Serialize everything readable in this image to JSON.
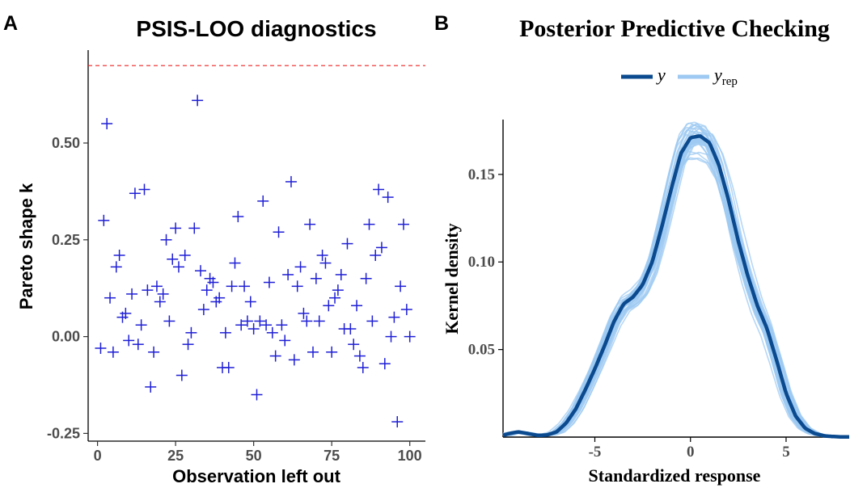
{
  "panels": {
    "A": {
      "letter": "A"
    },
    "B": {
      "letter": "B"
    }
  },
  "chart_data": [
    {
      "type": "scatter",
      "title": "PSIS-LOO diagnostics",
      "xlabel": "Observation left out",
      "ylabel": "Pareto shape k",
      "xlim": [
        -3,
        105
      ],
      "ylim": [
        -0.27,
        0.74
      ],
      "xticks": [
        0,
        25,
        50,
        75,
        100
      ],
      "xtick_labels": [
        "0",
        "25",
        "50",
        "75",
        "100"
      ],
      "yticks": [
        -0.25,
        0,
        0.25,
        0.5
      ],
      "ytick_labels": [
        "-0.25",
        "0.00",
        "0.25",
        "0.50"
      ],
      "threshold": 0.7,
      "threshold_color": "#ee2222",
      "marker": "plus",
      "marker_color": "#1f1fd6",
      "grid": false,
      "x": [
        1,
        2,
        3,
        4,
        5,
        6,
        7,
        8,
        9,
        10,
        11,
        12,
        13,
        14,
        15,
        16,
        17,
        18,
        19,
        20,
        21,
        22,
        23,
        24,
        25,
        26,
        27,
        28,
        29,
        30,
        31,
        32,
        33,
        34,
        35,
        36,
        37,
        38,
        39,
        40,
        41,
        42,
        43,
        44,
        45,
        46,
        47,
        48,
        49,
        50,
        51,
        52,
        53,
        54,
        55,
        56,
        57,
        58,
        59,
        60,
        61,
        62,
        63,
        64,
        65,
        66,
        67,
        68,
        69,
        70,
        71,
        72,
        73,
        74,
        75,
        76,
        77,
        78,
        79,
        80,
        81,
        82,
        83,
        84,
        85,
        86,
        87,
        88,
        89,
        90,
        91,
        92,
        93,
        94,
        95,
        96,
        97,
        98,
        99,
        100
      ],
      "y": [
        -0.03,
        0.3,
        0.55,
        0.1,
        -0.04,
        0.18,
        0.21,
        0.05,
        0.06,
        -0.01,
        0.11,
        0.37,
        -0.02,
        0.03,
        0.38,
        0.12,
        -0.13,
        -0.04,
        0.13,
        0.09,
        0.11,
        0.25,
        0.04,
        0.2,
        0.28,
        0.18,
        -0.1,
        0.21,
        -0.02,
        0.01,
        0.28,
        0.61,
        0.17,
        0.07,
        0.12,
        0.15,
        0.14,
        0.09,
        0.1,
        -0.08,
        0.01,
        -0.08,
        0.13,
        0.19,
        0.31,
        0.03,
        0.13,
        0.04,
        0.09,
        0.02,
        -0.15,
        0.04,
        0.35,
        0.03,
        0.14,
        0.01,
        -0.05,
        0.27,
        0.03,
        -0.01,
        0.16,
        0.4,
        -0.06,
        0.13,
        0.18,
        0.06,
        0.04,
        0.29,
        -0.04,
        0.15,
        0.04,
        0.21,
        0.19,
        0.08,
        -0.04,
        0.1,
        0.12,
        0.16,
        0.02,
        0.24,
        0.02,
        -0.02,
        0.08,
        -0.05,
        -0.08,
        0.15,
        0.29,
        0.04,
        0.21,
        0.38,
        0.23,
        -0.07,
        0.36,
        0.0,
        0.05,
        -0.22,
        0.13,
        0.29,
        0.07,
        0.0
      ]
    },
    {
      "type": "line",
      "title": "Posterior Predictive Checking",
      "xlabel": "Standardized response",
      "ylabel": "Kernel density",
      "xlim": [
        -9.8,
        8.3
      ],
      "ylim": [
        0,
        0.185
      ],
      "xticks": [
        -5,
        0,
        5
      ],
      "xtick_labels": [
        "-5",
        "0",
        "5"
      ],
      "yticks": [
        0.05,
        0.1,
        0.15
      ],
      "ytick_labels": [
        "0.05",
        "0.10",
        "0.15"
      ],
      "legend_position": "top",
      "grid": false,
      "series": [
        {
          "name": "y",
          "color": "#0b4a8f",
          "x": [
            -9.8,
            -9.5,
            -9,
            -8.5,
            -8,
            -7.5,
            -7,
            -6.5,
            -6,
            -5.5,
            -5,
            -4.5,
            -4,
            -3.5,
            -3,
            -2.5,
            -2,
            -1.5,
            -1,
            -0.5,
            0,
            0.5,
            1,
            1.5,
            2,
            2.5,
            3,
            3.5,
            4,
            4.5,
            5,
            5.5,
            6,
            6.5,
            7,
            7.5,
            8,
            8.3
          ],
          "y": [
            0.001,
            0.002,
            0.003,
            0.002,
            0.001,
            0.0012,
            0.003,
            0.008,
            0.016,
            0.027,
            0.039,
            0.052,
            0.066,
            0.076,
            0.08,
            0.087,
            0.1,
            0.12,
            0.142,
            0.162,
            0.171,
            0.172,
            0.168,
            0.155,
            0.135,
            0.112,
            0.092,
            0.075,
            0.062,
            0.044,
            0.025,
            0.012,
            0.005,
            0.002,
            0.0007,
            0.0003,
            0.0001,
            0.0001
          ]
        },
        {
          "name": "y_rep",
          "color": "#9ec9f2",
          "draws": 40
        }
      ]
    }
  ]
}
